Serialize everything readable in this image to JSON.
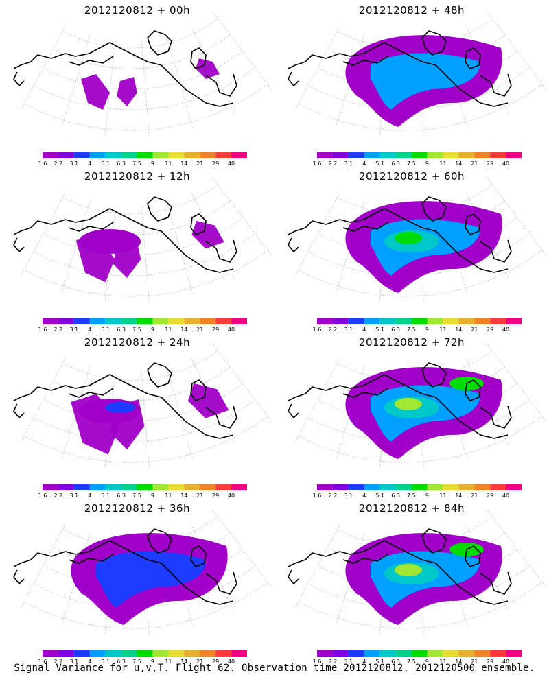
{
  "panels": [
    {
      "title": "2012120812 + 00h",
      "level": 0
    },
    {
      "title": "2012120812 + 48h",
      "level": 4
    },
    {
      "title": "2012120812 + 12h",
      "level": 1
    },
    {
      "title": "2012120812 + 60h",
      "level": 5
    },
    {
      "title": "2012120812 + 24h",
      "level": 2
    },
    {
      "title": "2012120812 + 72h",
      "level": 6
    },
    {
      "title": "2012120812 + 36h",
      "level": 3
    },
    {
      "title": "2012120812 + 84h",
      "level": 7
    }
  ],
  "colorbar": {
    "labels": [
      "1.6",
      "2.2",
      "3.1",
      "4",
      "5.1",
      "6.3",
      "7.5",
      "9",
      "11",
      "14",
      "21",
      "29",
      "40"
    ],
    "colors": [
      "#a000c8",
      "#8200dc",
      "#1e3cff",
      "#00a0ff",
      "#00c8c8",
      "#00d28c",
      "#00dc00",
      "#a0e632",
      "#e6dc32",
      "#e6af2d",
      "#f08228",
      "#fa3c3c",
      "#f00082"
    ]
  },
  "footer": "Signal Variance for u,v,T. Flight 62. Observation time 2012120812. 2012120500 ensemble."
}
